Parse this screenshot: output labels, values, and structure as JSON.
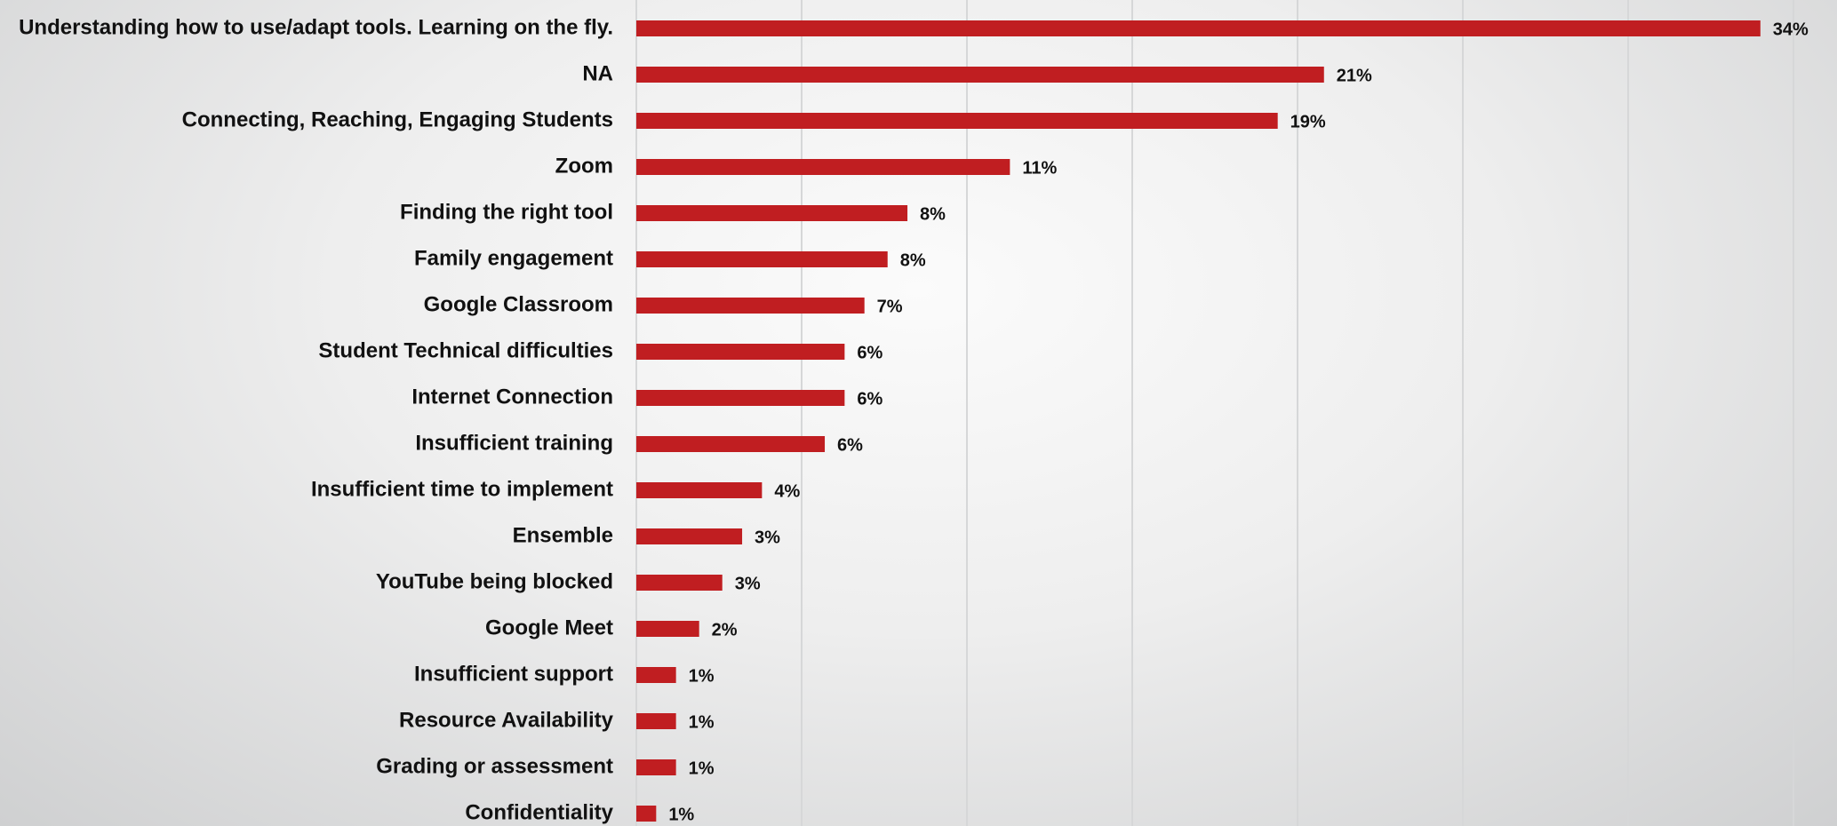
{
  "chart_data": {
    "type": "hbar",
    "categories": [
      "Understanding how to use/adapt tools. Learning on the fly.",
      "NA",
      "Connecting, Reaching, Engaging Students",
      "Zoom",
      "Finding the right tool",
      "Family engagement",
      "Google Classroom",
      "Student Technical difficulties",
      "Internet Connection",
      "Insufficient training",
      "Insufficient time to implement",
      "Ensemble",
      "YouTube being blocked",
      "Google Meet",
      "Insufficient support",
      "Resource Availability",
      "Grading or assessment",
      "Confidentiality"
    ],
    "values": [
      34.0,
      20.8,
      19.4,
      11.3,
      8.2,
      7.6,
      6.9,
      6.3,
      6.3,
      5.7,
      3.8,
      3.2,
      2.6,
      1.9,
      1.2,
      1.2,
      1.2,
      0.6
    ],
    "value_labels": [
      "34%",
      "21%",
      "19%",
      "11%",
      "8%",
      "8%",
      "7%",
      "6%",
      "6%",
      "6%",
      "4%",
      "3%",
      "3%",
      "2%",
      "1%",
      "1%",
      "1%",
      "1%"
    ],
    "color": "#c01e21",
    "xlim": [
      0,
      35
    ],
    "xticks": [
      0,
      5,
      10,
      15,
      20,
      25,
      30,
      35
    ],
    "grid": true
  }
}
